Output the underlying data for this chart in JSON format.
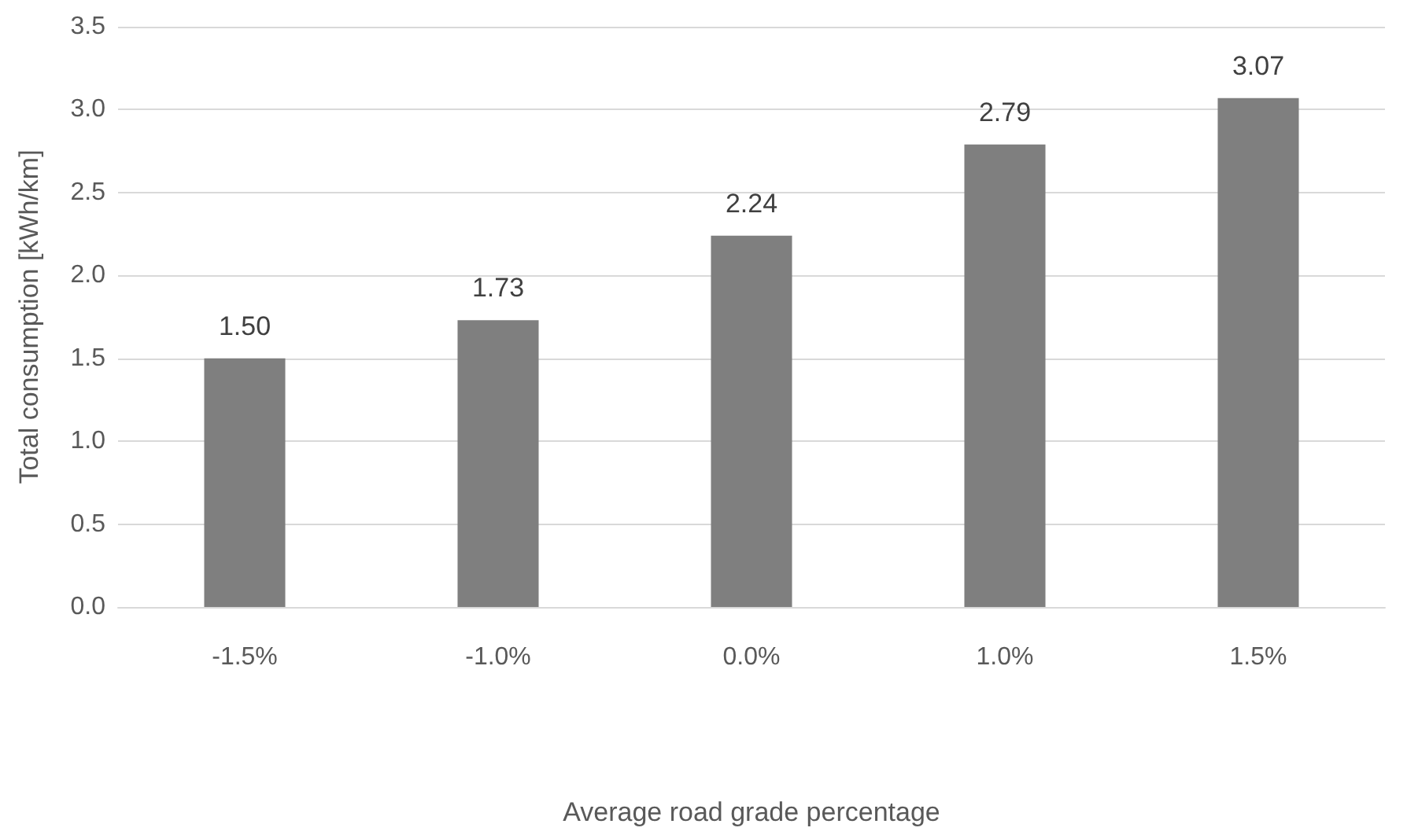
{
  "chart_data": {
    "type": "bar",
    "xlabel": "Average road grade percentage",
    "ylabel": "Total consumption [kWh/km]",
    "categories": [
      "-1.5%",
      "-1.0%",
      "0.0%",
      "1.0%",
      "1.5%"
    ],
    "values": [
      1.5,
      1.73,
      2.24,
      2.79,
      3.07
    ],
    "value_labels": [
      "1.50",
      "1.73",
      "2.24",
      "2.79",
      "3.07"
    ],
    "color": "#7f7f7f",
    "ylim": [
      0,
      3.5
    ],
    "yticks": [
      {
        "value": 0,
        "label": "0.0"
      },
      {
        "value": 0.5,
        "label": "0.5"
      },
      {
        "value": 1,
        "label": "1.0"
      },
      {
        "value": 1.5,
        "label": "1.5"
      },
      {
        "value": 2,
        "label": "2.0"
      },
      {
        "value": 2.5,
        "label": "2.5"
      },
      {
        "value": 3,
        "label": "3.0"
      },
      {
        "value": 3.5,
        "label": "3.5"
      }
    ],
    "grid": "y"
  }
}
